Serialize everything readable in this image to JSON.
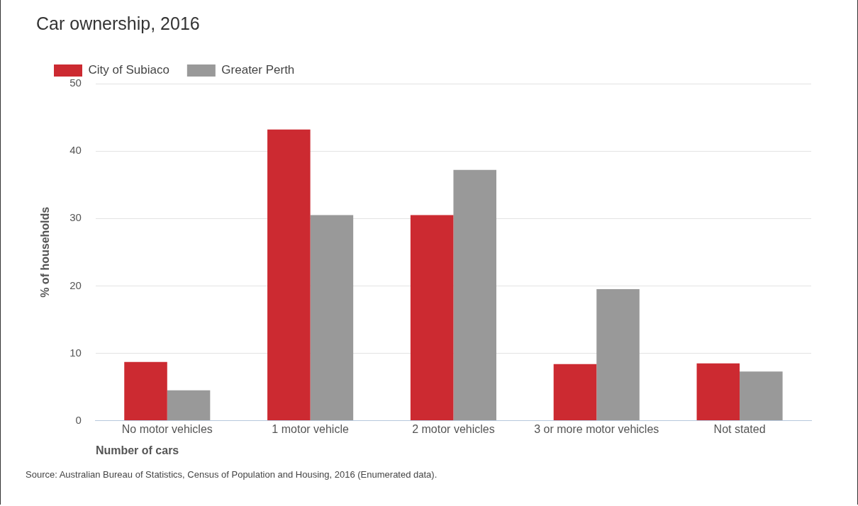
{
  "chart_data": {
    "type": "bar",
    "title": "Car ownership, 2016",
    "xlabel": "Number of cars",
    "ylabel": "% of households",
    "categories": [
      "No motor vehicles",
      "1 motor vehicle",
      "2 motor vehicles",
      "3 or more motor vehicles",
      "Not stated"
    ],
    "series": [
      {
        "name": "City of Subiaco",
        "color": "#cc2a31",
        "values": [
          8.7,
          43.2,
          30.5,
          8.4,
          8.5
        ]
      },
      {
        "name": "Greater Perth",
        "color": "#999999",
        "values": [
          4.5,
          30.5,
          37.2,
          19.5,
          7.3
        ]
      }
    ],
    "ylim": [
      0,
      50
    ],
    "yticks": [
      0,
      10,
      20,
      30,
      40,
      50
    ],
    "grid": "y",
    "legend": "top left",
    "annotations": [
      "Source: Australian Bureau of Statistics, Census of Population and Housing, 2016 (Enumerated data)."
    ]
  }
}
